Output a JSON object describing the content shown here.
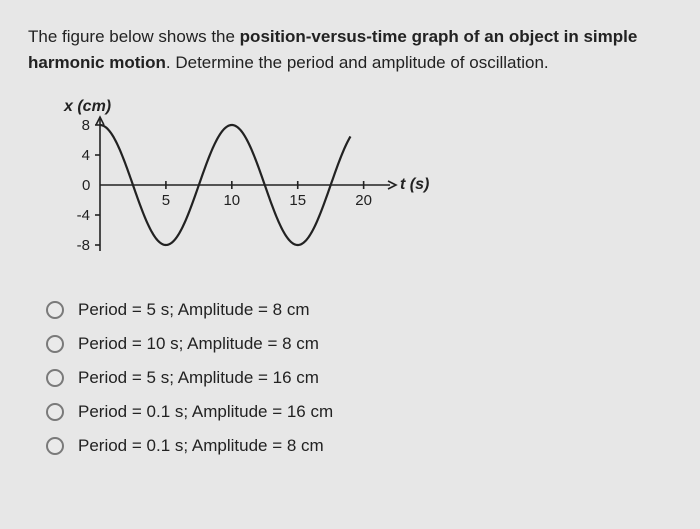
{
  "question": {
    "line1_pre": "The figure below shows the ",
    "line1_bold": "position-versus-time graph of an object in simple",
    "line2_bold": "harmonic motion",
    "line2_post": ". Determine the period and amplitude of oscillation."
  },
  "chart": {
    "type": "line",
    "y_label": "x (cm)",
    "x_label": "t (s)",
    "y_ticks": [
      8,
      4,
      0,
      -4,
      -8
    ],
    "x_ticks": [
      5,
      10,
      15,
      20
    ],
    "y_range": [
      -8,
      8
    ],
    "x_range": [
      0,
      22
    ],
    "amplitude": 8,
    "period": 10,
    "curve_end_x": 19,
    "axis_color": "#222222",
    "curve_color": "#222222",
    "label_fontsize": 16,
    "tick_fontsize": 15,
    "curve_width": 2.2,
    "axis_width": 1.6
  },
  "options": [
    {
      "text": "Period = 5 s; Amplitude = 8 cm"
    },
    {
      "text": "Period = 10 s; Amplitude = 8 cm"
    },
    {
      "text": "Period = 5 s; Amplitude = 16 cm"
    },
    {
      "text": "Period = 0.1 s; Amplitude = 16 cm"
    },
    {
      "text": "Period = 0.1 s; Amplitude = 8 cm"
    }
  ]
}
